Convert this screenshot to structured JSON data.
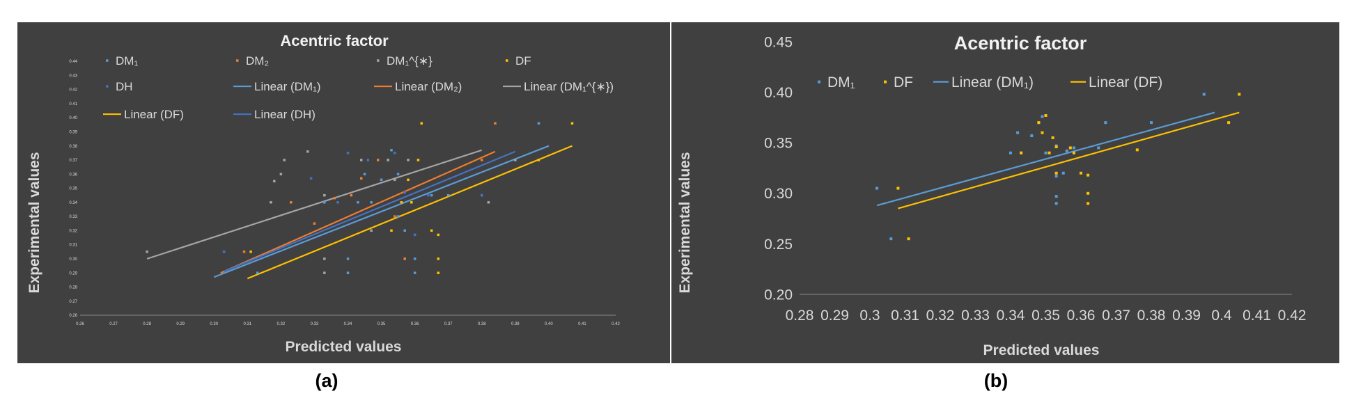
{
  "figure": {
    "panel_labels": [
      "(a)",
      "(b)"
    ]
  },
  "colors": {
    "background": "#404040",
    "text": "#d9d9d9",
    "title": "#f2f2f2",
    "DM1": "#5b9bd5",
    "DM2": "#ed7d31",
    "DM1x": "#a5a5a5",
    "DF": "#ffc000",
    "DH": "#4472c4"
  },
  "chart_data": [
    {
      "type": "scatter",
      "title": "Acentric factor",
      "xlabel": "Predicted values",
      "ylabel": "Experimental values",
      "xlim": [
        0.26,
        0.42
      ],
      "ylim": [
        0.26,
        0.44
      ],
      "xticks": [
        "0.26",
        "0.27",
        "0.28",
        "0.29",
        "0.30",
        "0.31",
        "0.32",
        "0.33",
        "0.34",
        "0.35",
        "0.36",
        "0.37",
        "0.38",
        "0.39",
        "0.40",
        "0.41",
        "0.42"
      ],
      "yticks": [
        "0.26",
        "0.27",
        "0.28",
        "0.29",
        "0.30",
        "0.31",
        "0.32",
        "0.33",
        "0.34",
        "0.35",
        "0.36",
        "0.37",
        "0.38",
        "0.39",
        "0.40",
        "0.41",
        "0.42",
        "0.43",
        "0.44"
      ],
      "grid": false,
      "legend_placement": "top",
      "legend": [
        "DM₁",
        "DM₂",
        "DM₁^{∗}",
        "DF",
        "DH",
        "Linear (DM₁)",
        "Linear (DM₂)",
        "Linear (DM₁^{∗})",
        "Linear (DF)",
        "Linear (DH)"
      ],
      "series": [
        {
          "name": "DM₁",
          "color_key": "DM1",
          "x": [
            0.303,
            0.313,
            0.333,
            0.34,
            0.34,
            0.343,
            0.344,
            0.345,
            0.347,
            0.35,
            0.352,
            0.353,
            0.355,
            0.355,
            0.357,
            0.357,
            0.36,
            0.36,
            0.365,
            0.37,
            0.397
          ],
          "y": [
            0.305,
            0.29,
            0.34,
            0.29,
            0.3,
            0.34,
            0.357,
            0.36,
            0.34,
            0.356,
            0.37,
            0.377,
            0.36,
            0.33,
            0.32,
            0.3,
            0.29,
            0.3,
            0.345,
            0.345,
            0.396
          ]
        },
        {
          "name": "DM₂",
          "color_key": "DM2",
          "x": [
            0.309,
            0.323,
            0.33,
            0.336,
            0.341,
            0.344,
            0.349,
            0.354,
            0.357,
            0.38,
            0.384
          ],
          "y": [
            0.305,
            0.34,
            0.325,
            0.343,
            0.345,
            0.357,
            0.37,
            0.33,
            0.3,
            0.37,
            0.396
          ]
        },
        {
          "name": "DM₁^{∗}",
          "color_key": "DM1x",
          "x": [
            0.28,
            0.317,
            0.318,
            0.32,
            0.321,
            0.328,
            0.333,
            0.333,
            0.333,
            0.344,
            0.347,
            0.352,
            0.354,
            0.358,
            0.382,
            0.39
          ],
          "y": [
            0.305,
            0.34,
            0.355,
            0.36,
            0.37,
            0.376,
            0.29,
            0.3,
            0.345,
            0.37,
            0.32,
            0.37,
            0.356,
            0.37,
            0.34,
            0.37
          ]
        },
        {
          "name": "DF",
          "color_key": "DF",
          "x": [
            0.311,
            0.353,
            0.356,
            0.358,
            0.359,
            0.361,
            0.362,
            0.365,
            0.367,
            0.367,
            0.367,
            0.38,
            0.397,
            0.407
          ],
          "y": [
            0.305,
            0.32,
            0.34,
            0.356,
            0.34,
            0.37,
            0.396,
            0.32,
            0.3,
            0.29,
            0.317,
            0.345,
            0.37,
            0.396
          ]
        },
        {
          "name": "DH",
          "color_key": "DH",
          "x": [
            0.303,
            0.329,
            0.337,
            0.34,
            0.346,
            0.354,
            0.357,
            0.36,
            0.364,
            0.38
          ],
          "y": [
            0.305,
            0.357,
            0.34,
            0.375,
            0.37,
            0.375,
            0.347,
            0.317,
            0.345,
            0.345
          ]
        }
      ],
      "trendlines": [
        {
          "name": "Linear (DM₁)",
          "color_key": "DM1",
          "x": [
            0.3,
            0.4
          ],
          "y": [
            0.287,
            0.38
          ]
        },
        {
          "name": "Linear (DM₂)",
          "color_key": "DM2",
          "x": [
            0.302,
            0.384
          ],
          "y": [
            0.29,
            0.376
          ]
        },
        {
          "name": "Linear (DM₁^{∗})",
          "color_key": "DM1x",
          "x": [
            0.28,
            0.38
          ],
          "y": [
            0.3,
            0.377
          ]
        },
        {
          "name": "Linear (DF)",
          "color_key": "DF",
          "x": [
            0.31,
            0.407
          ],
          "y": [
            0.286,
            0.38
          ]
        },
        {
          "name": "Linear (DH)",
          "color_key": "DH",
          "x": [
            0.303,
            0.39
          ],
          "y": [
            0.291,
            0.376
          ]
        }
      ]
    },
    {
      "type": "scatter",
      "title": "Acentric factor",
      "xlabel": "Predicted values",
      "ylabel": "Experimental values",
      "xlim": [
        0.28,
        0.42
      ],
      "ylim": [
        0.2,
        0.45
      ],
      "xticks": [
        "0.28",
        "0.29",
        "0.3",
        "0.31",
        "0.32",
        "0.33",
        "0.34",
        "0.35",
        "0.36",
        "0.37",
        "0.38",
        "0.39",
        "0.4",
        "0.41",
        "0.42"
      ],
      "yticks": [
        "0.20",
        "0.25",
        "0.30",
        "0.35",
        "0.40",
        "0.45"
      ],
      "grid": false,
      "legend_placement": "top",
      "legend": [
        "DM₁",
        "DF",
        "Linear (DM₁)",
        "Linear (DF)"
      ],
      "series": [
        {
          "name": "DM₁",
          "color_key": "DM1",
          "x": [
            0.302,
            0.306,
            0.34,
            0.342,
            0.343,
            0.346,
            0.348,
            0.349,
            0.35,
            0.353,
            0.353,
            0.353,
            0.353,
            0.355,
            0.356,
            0.358,
            0.365,
            0.367,
            0.38,
            0.395
          ],
          "y": [
            0.305,
            0.255,
            0.34,
            0.36,
            0.34,
            0.357,
            0.37,
            0.376,
            0.34,
            0.317,
            0.297,
            0.29,
            0.347,
            0.32,
            0.342,
            0.345,
            0.345,
            0.37,
            0.37,
            0.398
          ]
        },
        {
          "name": "DF",
          "color_key": "DF",
          "x": [
            0.308,
            0.311,
            0.343,
            0.348,
            0.349,
            0.35,
            0.351,
            0.352,
            0.353,
            0.353,
            0.357,
            0.358,
            0.36,
            0.362,
            0.362,
            0.362,
            0.376,
            0.402,
            0.405
          ],
          "y": [
            0.305,
            0.255,
            0.34,
            0.37,
            0.36,
            0.377,
            0.34,
            0.355,
            0.346,
            0.32,
            0.345,
            0.34,
            0.32,
            0.318,
            0.3,
            0.29,
            0.343,
            0.37,
            0.398
          ]
        }
      ],
      "trendlines": [
        {
          "name": "Linear (DM₁)",
          "color_key": "DM1",
          "x": [
            0.302,
            0.398
          ],
          "y": [
            0.288,
            0.38
          ]
        },
        {
          "name": "Linear (DF)",
          "color_key": "DF",
          "x": [
            0.308,
            0.405
          ],
          "y": [
            0.285,
            0.38
          ]
        }
      ]
    }
  ]
}
